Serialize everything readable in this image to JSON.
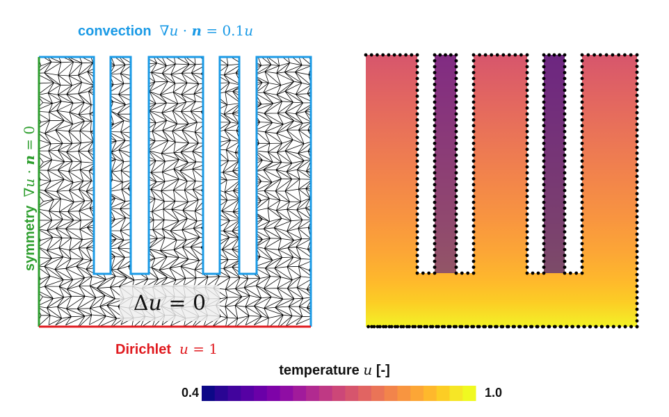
{
  "labels": {
    "convection_word": "convection",
    "convection_eq": "∇u · n = 0.1u",
    "dirichlet_word": "Dirichlet",
    "dirichlet_eq": "u = 1",
    "symmetry_word": "symmetry",
    "symmetry_eq": "∇u · n = 0",
    "laplace_eq": "Δu = 0"
  },
  "colorbar": {
    "title_word": "temperature",
    "title_var": "u",
    "title_unit": "[-]",
    "min_label": "0.4",
    "max_label": "1.0",
    "min_value": 0.4,
    "max_value": 1.0
  },
  "colors": {
    "convection": "#1a9ae6",
    "dirichlet": "#e0191e",
    "symmetry": "#2e9e2e",
    "mesh": "#000000",
    "colormap": [
      "#0d0887",
      "#2a0593",
      "#41049d",
      "#5601a4",
      "#6a00a8",
      "#7e03a8",
      "#8f0da4",
      "#a11b9b",
      "#b12a90",
      "#bf3984",
      "#cc4778",
      "#d6556d",
      "#e16462",
      "#ea7457",
      "#f2844b",
      "#f89540",
      "#fca636",
      "#feb82c",
      "#fccd25",
      "#f6e626",
      "#f0f921"
    ]
  }
}
